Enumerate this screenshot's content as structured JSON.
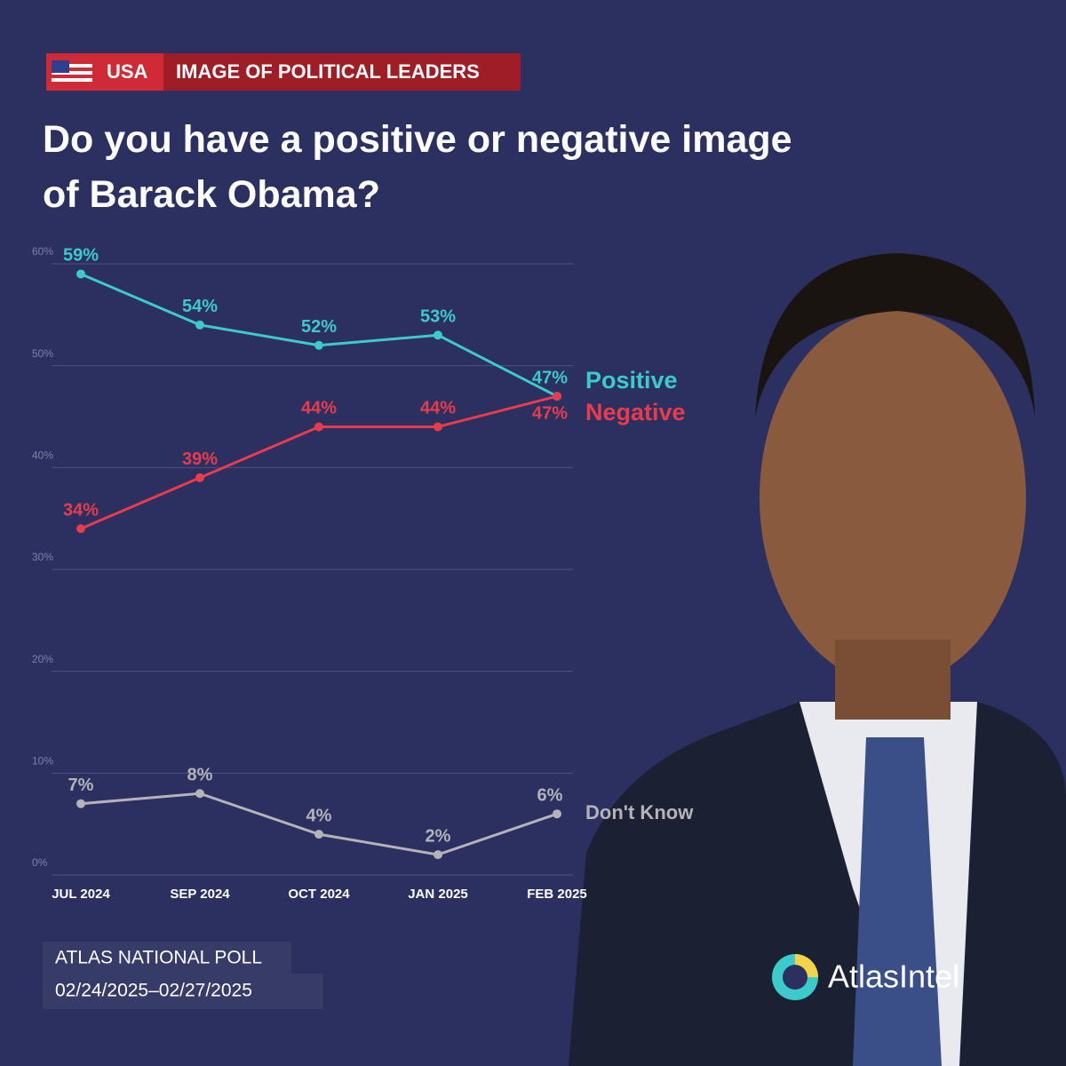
{
  "header": {
    "country": "USA",
    "section": "IMAGE OF POLITICAL LEADERS"
  },
  "chart_data": {
    "type": "line",
    "title": "Do you have a positive or negative image of Barack Obama?",
    "categories": [
      "JUL 2024",
      "SEP 2024",
      "OCT 2024",
      "JAN 2025",
      "FEB 2025"
    ],
    "series": [
      {
        "name": "Positive",
        "color": "#3ccaca",
        "values": [
          59,
          54,
          52,
          53,
          47
        ],
        "value_labels": [
          "59%",
          "54%",
          "52%",
          "53%",
          "47%"
        ]
      },
      {
        "name": "Negative",
        "color": "#ea3b4c",
        "values": [
          34,
          39,
          44,
          44,
          47
        ],
        "value_labels": [
          "34%",
          "39%",
          "44%",
          "44%",
          "47%"
        ]
      },
      {
        "name": "Don't Know",
        "color": "#b3b3b8",
        "values": [
          7,
          8,
          4,
          2,
          6
        ],
        "value_labels": [
          "7%",
          "8%",
          "4%",
          "2%",
          "6%"
        ]
      }
    ],
    "ylim": [
      0,
      60
    ],
    "yticks": [
      {
        "value": 0,
        "label": "0%"
      },
      {
        "value": 10,
        "label": "10%"
      },
      {
        "value": 20,
        "label": "20%"
      },
      {
        "value": 30,
        "label": "30%"
      },
      {
        "value": 40,
        "label": "40%"
      },
      {
        "value": 50,
        "label": "50%"
      },
      {
        "value": 60,
        "label": "60%"
      }
    ],
    "grid": true
  },
  "footer": {
    "source": "ATLAS NATIONAL POLL",
    "dates": "02/24/2025–02/27/2025",
    "brand": "AtlasIntel"
  }
}
